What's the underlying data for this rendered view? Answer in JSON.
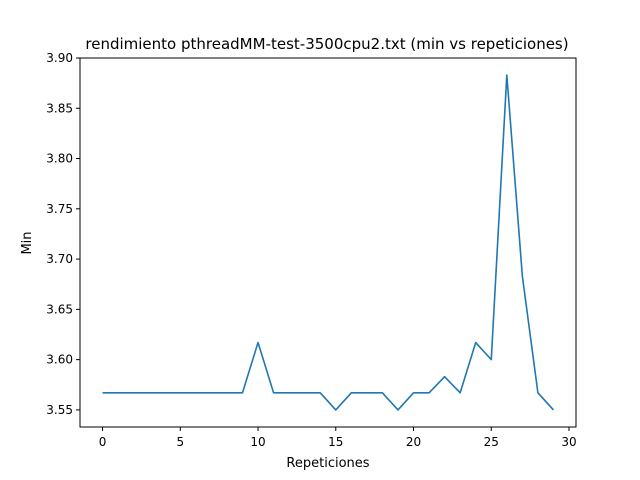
{
  "chart_data": {
    "type": "line",
    "title": "rendimiento pthreadMM-test-3500cpu2.txt (min vs repeticiones)",
    "xlabel": "Repeticiones",
    "ylabel": "Min",
    "xlim": [
      -1.45,
      30.45
    ],
    "ylim": [
      3.533,
      3.9
    ],
    "xticks": [
      0,
      5,
      10,
      15,
      20,
      25,
      30
    ],
    "yticks": [
      3.55,
      3.6,
      3.65,
      3.7,
      3.75,
      3.8,
      3.85,
      3.9
    ],
    "xtick_labels": [
      "0",
      "5",
      "10",
      "15",
      "20",
      "25",
      "30"
    ],
    "ytick_labels": [
      "3.55",
      "3.60",
      "3.65",
      "3.70",
      "3.75",
      "3.80",
      "3.85",
      "3.90"
    ],
    "grid": false,
    "color": "#1f77b4",
    "x": [
      0,
      1,
      2,
      3,
      4,
      5,
      6,
      7,
      8,
      9,
      10,
      11,
      12,
      13,
      14,
      15,
      16,
      17,
      18,
      19,
      20,
      21,
      22,
      23,
      24,
      25,
      26,
      27,
      28,
      29
    ],
    "values": [
      3.567,
      3.567,
      3.567,
      3.567,
      3.567,
      3.567,
      3.567,
      3.567,
      3.567,
      3.567,
      3.617,
      3.567,
      3.567,
      3.567,
      3.567,
      3.55,
      3.567,
      3.567,
      3.567,
      3.55,
      3.567,
      3.567,
      3.583,
      3.567,
      3.617,
      3.6,
      3.883,
      3.683,
      3.567,
      3.55
    ]
  }
}
